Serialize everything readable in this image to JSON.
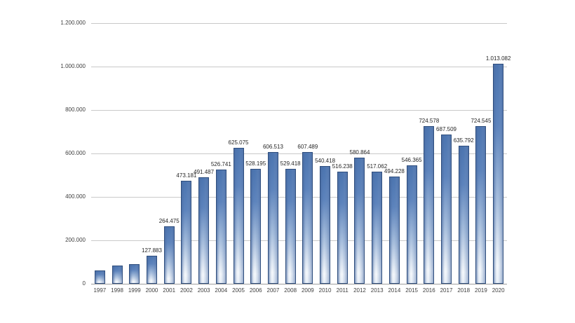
{
  "chart_data": {
    "type": "bar",
    "title": "",
    "xlabel": "",
    "ylabel": "",
    "grid": true,
    "legend": false,
    "ylim": [
      0,
      1200000
    ],
    "categories": [
      "1997",
      "1998",
      "1999",
      "2000",
      "2001",
      "2002",
      "2003",
      "2004",
      "2005",
      "2006",
      "2007",
      "2008",
      "2009",
      "2010",
      "2011",
      "2012",
      "2013",
      "2014",
      "2015",
      "2016",
      "2017",
      "2018",
      "2019",
      "2020"
    ],
    "values": [
      62000,
      83000,
      91000,
      127883,
      264475,
      473181,
      491487,
      526741,
      625075,
      528195,
      606513,
      529418,
      607489,
      540418,
      516238,
      580864,
      517062,
      494228,
      546365,
      724578,
      687509,
      635792,
      724545,
      1013082
    ],
    "bar_labels": [
      "",
      "",
      "",
      "127.883",
      "264.475",
      "473.181",
      "491.487",
      "526.741",
      "625.075",
      "528.195",
      "606.513",
      "529.418",
      "607.489",
      "540.418",
      "516.238",
      "580.864",
      "517.062",
      "494.228",
      "546.365",
      "724.578",
      "687.509",
      "635.792",
      "724.545",
      "1.013.082"
    ],
    "ytick_values": [
      0,
      200000,
      400000,
      600000,
      800000,
      1000000,
      1200000
    ],
    "ytick_labels": [
      "0",
      "200.000",
      "400.000",
      "600.000",
      "800.000",
      "1.000.000",
      "1.200.000"
    ],
    "colors": {
      "bar_fill_top": "#4c75b0",
      "bar_fill_bottom": "#f4f8fd",
      "bar_border": "#2f4e7d",
      "gridline": "#c9c9c9",
      "axis_line": "#9e9e9e",
      "text": "#3f3f3f",
      "background": "#ffffff"
    }
  }
}
